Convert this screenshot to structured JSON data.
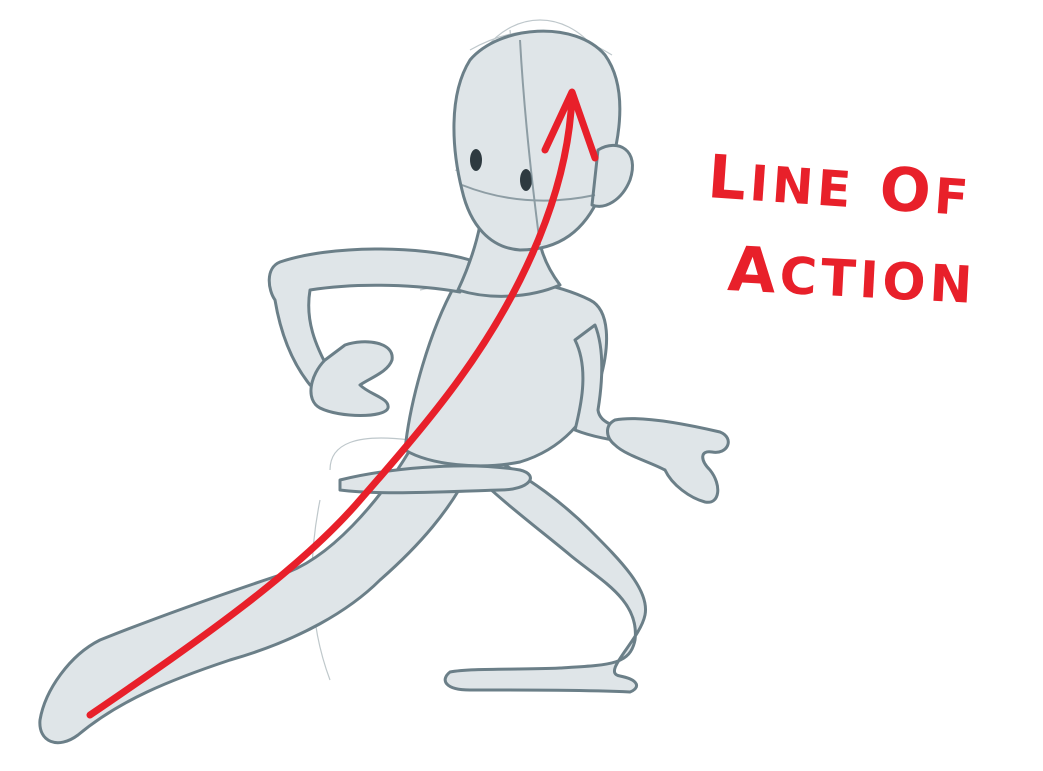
{
  "annotation": {
    "line1": "Line of",
    "line2": "Action",
    "color": "#e8202a"
  },
  "figure": {
    "fill_color": "#dfe5e8",
    "stroke_color": "#6b7f88"
  }
}
